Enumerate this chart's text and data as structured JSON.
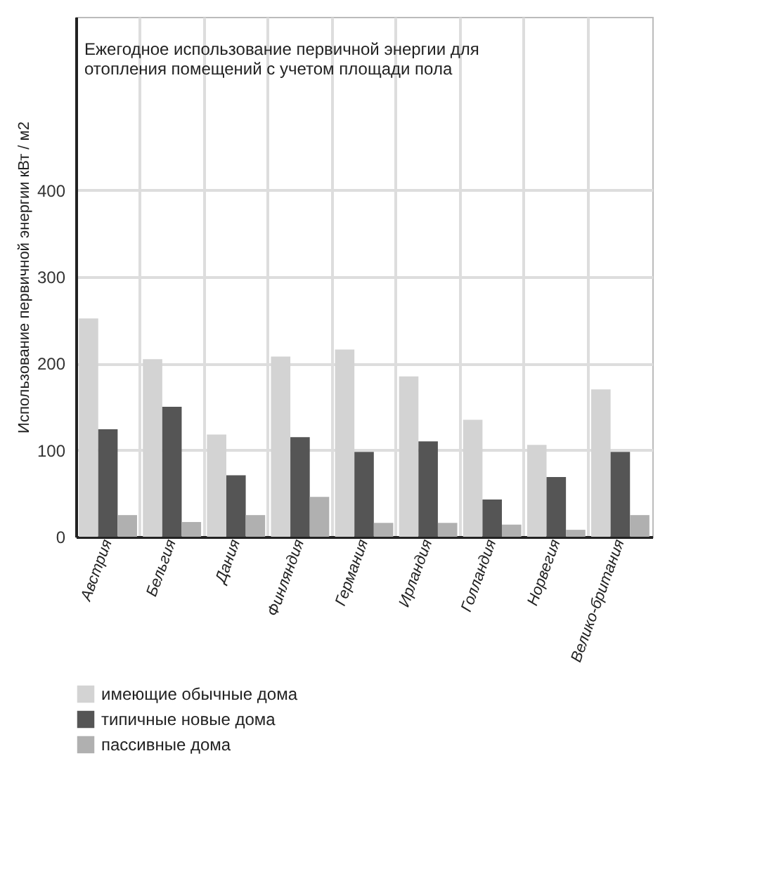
{
  "chart_data": {
    "type": "bar",
    "title": "Ежегодное использование первичной энергии для отопления помещений с учетом площади пола",
    "ylabel": "Использование первичной энергии кВт / м2",
    "categories": [
      "Австрия",
      "Бельгия",
      "Дания",
      "Финляндия",
      "Германия",
      "Ирландия",
      "Голландия",
      "Норвегия",
      "Велико-британия"
    ],
    "series": [
      {
        "name": "имеющие обычные дома",
        "color": "#d3d3d3",
        "values": [
          252,
          205,
          118,
          208,
          216,
          185,
          135,
          106,
          170
        ]
      },
      {
        "name": "типичные новые дома",
        "color": "#555555",
        "values": [
          124,
          150,
          71,
          115,
          98,
          110,
          43,
          69,
          98
        ]
      },
      {
        "name": "пассивные дома",
        "color": "#b0b0b0",
        "values": [
          25,
          17,
          25,
          46,
          16,
          16,
          14,
          8,
          25
        ]
      }
    ],
    "ylim": [
      0,
      600
    ],
    "yticks": [
      0,
      100,
      200,
      300,
      400
    ],
    "grid": true,
    "legend": "bottom"
  }
}
